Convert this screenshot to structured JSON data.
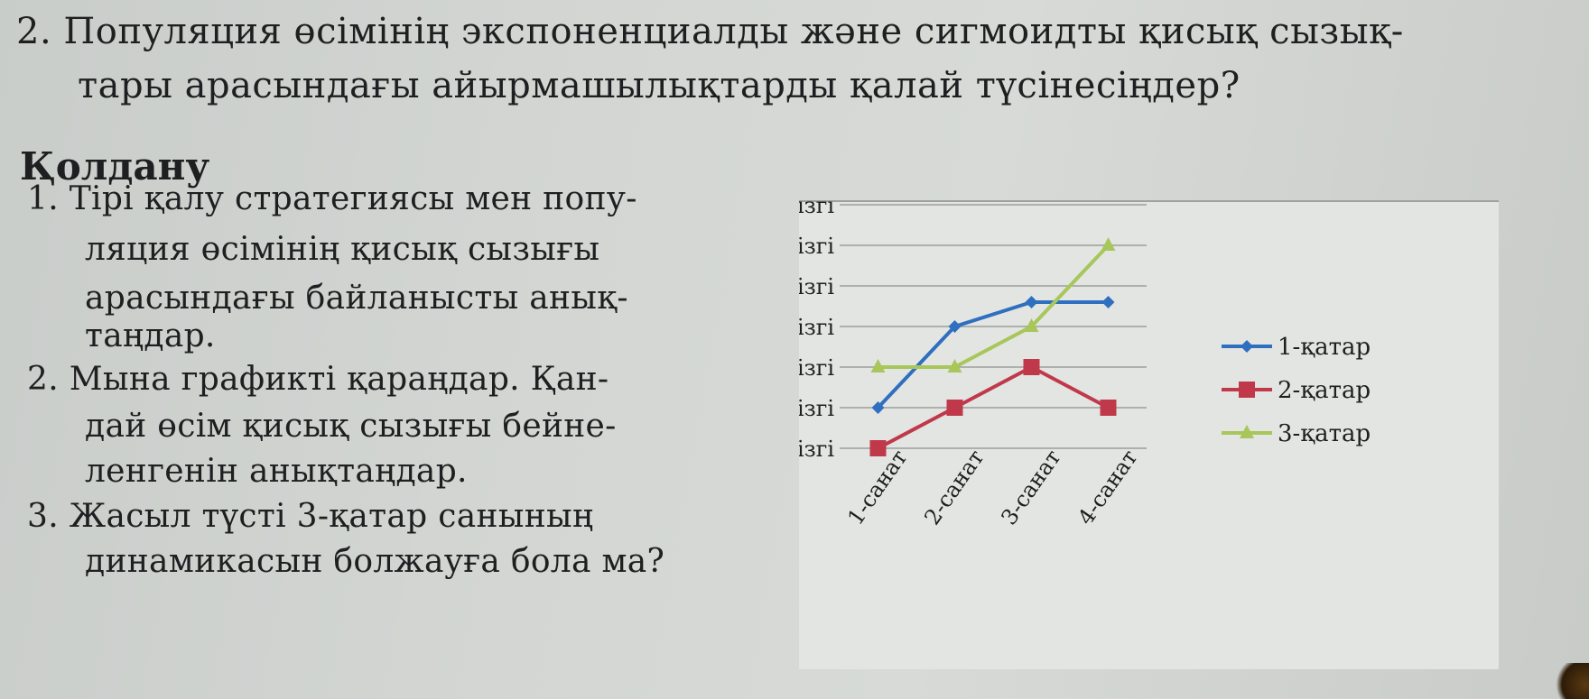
{
  "question": {
    "number": "2.",
    "line1": "Популяция өсімінің экспоненциалды және сигмоидты қисық сызық-",
    "line2": "тары арасындағы айырмашылықтарды қалай түсінесіңдер?"
  },
  "section_title": "Қолдану",
  "tasks": [
    {
      "number": "1.",
      "lines": [
        "Тірі қалу стратегиясы мен попу-",
        "ляция өсімінің қисық сызығы",
        "арасындағы байланысты анық-",
        "таңдар."
      ]
    },
    {
      "number": "2.",
      "lines": [
        "Мына графикті қараңдар. Қан-",
        "дай өсім қисық сызығы бейне-",
        "ленгенін анықтаңдар."
      ]
    },
    {
      "number": "3.",
      "lines": [
        "Жасыл түсті 3-қатар санының",
        "динамикасын болжауға бола ма?"
      ]
    }
  ],
  "chart_data": {
    "type": "line",
    "categories": [
      "1-санат",
      "2-санат",
      "3-санат",
      "4-санат"
    ],
    "y_tick_labels": [
      "Негізгі",
      "Негізгі",
      "Негізгі",
      "Негізгі",
      "Негізгі",
      "Негізгі",
      "Негізгі"
    ],
    "ylim": [
      0,
      6
    ],
    "grid": true,
    "legend_position": "right",
    "series": [
      {
        "name": "1-қатар",
        "values": [
          1,
          3,
          3.6,
          3.6
        ],
        "color": "#2f6fc0",
        "marker": "diamond"
      },
      {
        "name": "2-қатар",
        "values": [
          0,
          1,
          2,
          1
        ],
        "color": "#c0394b",
        "marker": "square"
      },
      {
        "name": "3-қатар",
        "values": [
          2,
          2,
          3,
          5
        ],
        "color": "#a8c65a",
        "marker": "triangle"
      }
    ]
  }
}
